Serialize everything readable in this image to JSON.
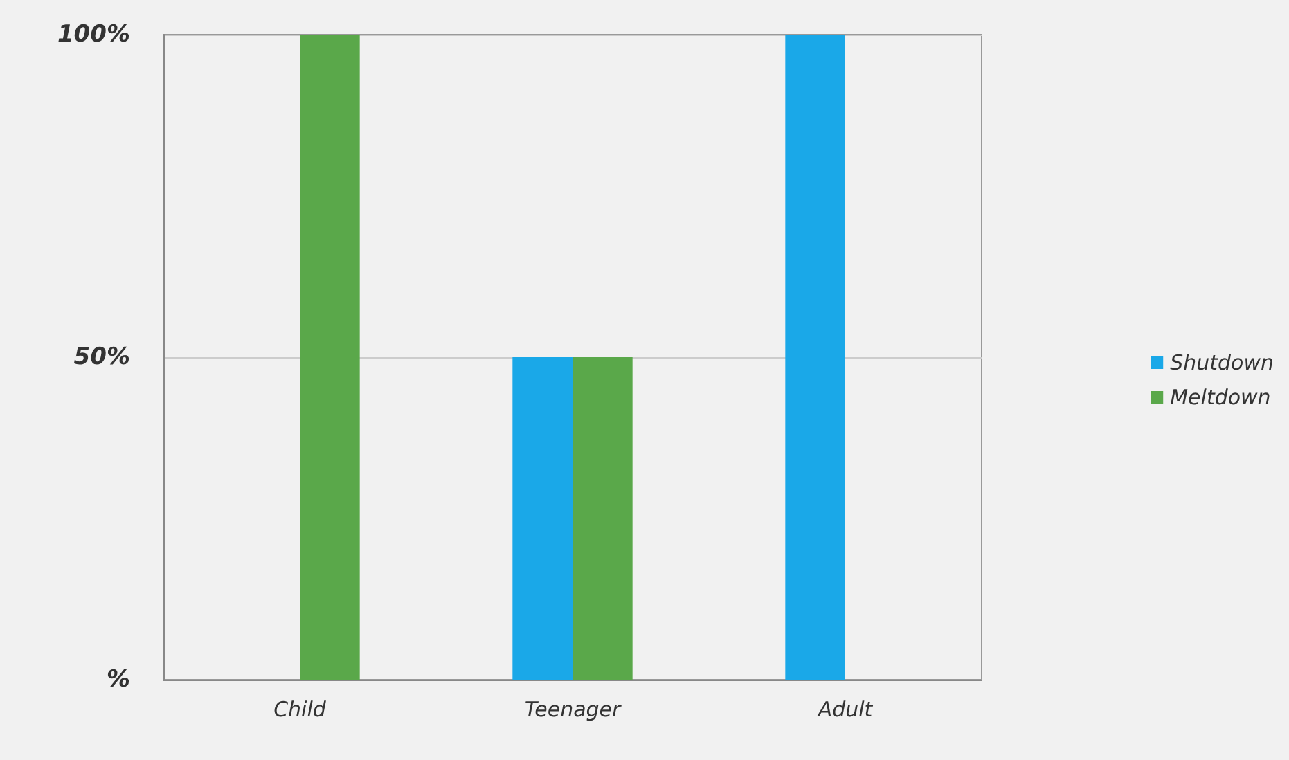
{
  "chart_data": {
    "type": "bar",
    "categories": [
      "Child",
      "Teenager",
      "Adult"
    ],
    "series": [
      {
        "name": "Shutdown",
        "color": "#1aa8e8",
        "values": [
          0,
          50,
          100
        ]
      },
      {
        "name": "Meltdown",
        "color": "#5aa84a",
        "values": [
          100,
          50,
          0
        ]
      }
    ],
    "ylim": [
      0,
      100
    ],
    "yticks": [
      {
        "value": 0,
        "label": "%"
      },
      {
        "value": 50,
        "label": "50%"
      },
      {
        "value": 100,
        "label": "100%"
      }
    ],
    "grid": "y",
    "legend": "right"
  }
}
